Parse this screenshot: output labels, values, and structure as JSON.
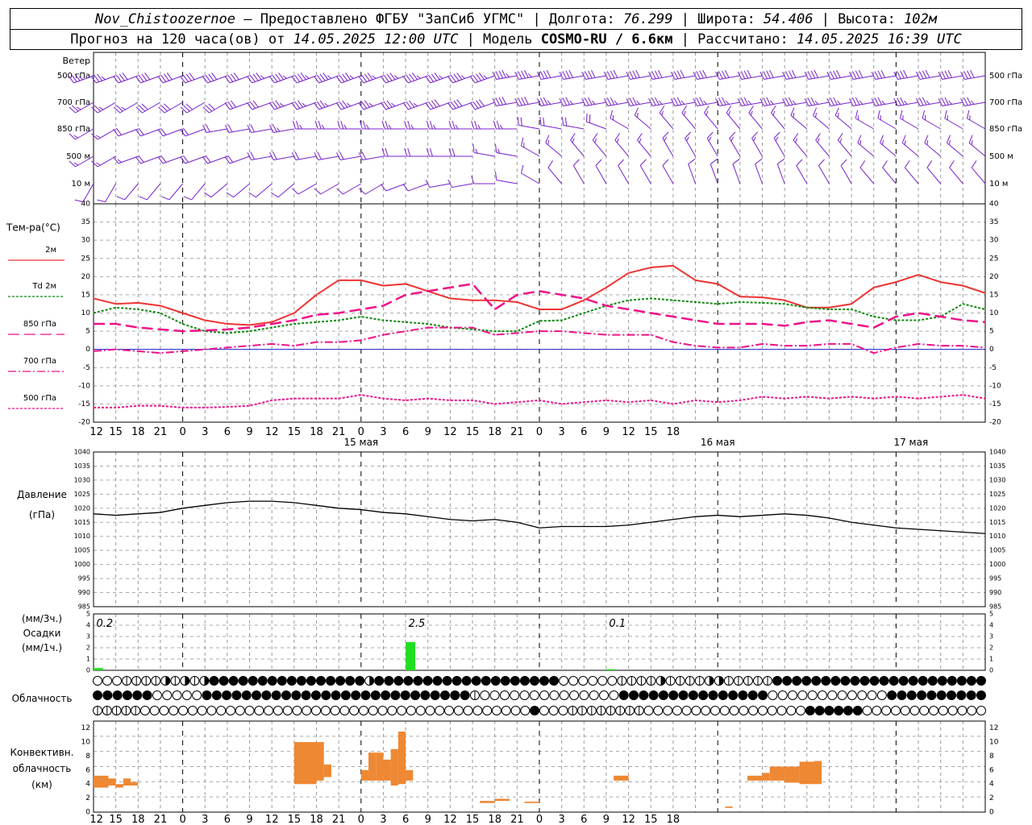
{
  "header": {
    "station": "Nov_Chistoozernoe",
    "provider": " – Предоставлено ФГБУ \"ЗапСиб УГМС\" | Долгота: ",
    "lon": "76.299",
    "lat_label": " | Широта: ",
    "lat": "54.406",
    "alt_label": " | Высота: ",
    "alt": "102м",
    "forecast_label": "Прогноз на 120 часа(ов) от ",
    "forecast_time": "14.05.2025 12:00 UTC",
    "model_label": " | Модель ",
    "model": "COSMO-RU / 6.6км",
    "calc_label": " | Рассчитано: ",
    "calc_time": "14.05.2025 16:39 UTC"
  },
  "labels": {
    "wind": "Ветер",
    "wind_levels": [
      "500 гПа",
      "700 гПа",
      "850 гПа",
      "500 м",
      "10  м"
    ],
    "temp_title": "Тем-ра(°C)",
    "temp_legend": [
      "2м",
      "Td  2м",
      "850 гПа",
      "700 гПа",
      "500 гПа"
    ],
    "pressure": [
      "Давление",
      "(гПа)"
    ],
    "precip": [
      "(мм/3ч.)",
      "Осадки",
      "(мм/1ч.)"
    ],
    "cloud": "Облачность",
    "conv": [
      "Конвективн.",
      "облачность",
      "(км)"
    ]
  },
  "colors": {
    "t2m": "#ee3333",
    "td2m": "#118811",
    "t850": "#ee1188",
    "t700": "#ee1188",
    "t500": "#ee1188",
    "zero_line": "#2222cc",
    "wind": "#7722cc",
    "pressure": "#000000",
    "precip": "#22dd22",
    "conv": "#ee8833"
  },
  "chart_data": [
    {
      "type": "line",
      "title": "Тем-ра(°C)",
      "x_ticks": [
        "12",
        "15",
        "18",
        "21",
        "0",
        "3",
        "6",
        "9",
        "12",
        "15",
        "18",
        "21",
        "0",
        "3",
        "6",
        "9",
        "12",
        "15",
        "18",
        "21",
        "0",
        "3",
        "6",
        "9",
        "12",
        "15",
        "18"
      ],
      "date_labels": [
        "15 мая",
        "16 мая",
        "17 мая"
      ],
      "ylim": [
        -20,
        40
      ],
      "hours": [
        0,
        3,
        6,
        9,
        12,
        15,
        18,
        21,
        24,
        27,
        30,
        33,
        36,
        39,
        42,
        45,
        48,
        51,
        54,
        57,
        60,
        63,
        66,
        69,
        72,
        75,
        78,
        81,
        84,
        87,
        90,
        93,
        96,
        99,
        102,
        105,
        108,
        111,
        114,
        117,
        120
      ],
      "series": [
        {
          "name": "2м",
          "values": [
            14,
            12.5,
            12.8,
            12,
            10,
            8,
            7,
            6.7,
            7.5,
            10,
            15,
            19,
            19,
            17.5,
            18,
            16,
            14,
            13.5,
            13.5,
            13,
            11,
            11,
            13.5,
            17,
            21,
            22.5,
            23,
            19,
            18,
            14.5,
            14.3,
            13.5,
            11.5,
            11.5,
            12.5,
            17,
            18.5,
            20.5,
            18.5,
            17.5,
            15.5
          ]
        },
        {
          "name": "Td  2м",
          "values": [
            10,
            11.5,
            11,
            10,
            7,
            5,
            4.5,
            5,
            6,
            7,
            7.5,
            8,
            9,
            8,
            7.5,
            7,
            6,
            5.5,
            5,
            5,
            7.8,
            8,
            10,
            12,
            13.5,
            14,
            13.5,
            13,
            12.5,
            13,
            12.8,
            12.5,
            11.5,
            11,
            11,
            9,
            8,
            8,
            9,
            12.5,
            11
          ]
        },
        {
          "name": "850 гПа",
          "values": [
            7,
            7,
            6,
            5.5,
            5,
            5.2,
            5.5,
            6,
            7,
            8,
            9.5,
            10,
            11,
            12,
            15,
            16,
            17,
            18,
            11,
            15,
            16,
            15,
            14,
            12,
            11,
            10,
            9,
            8,
            7,
            7,
            7,
            6.5,
            7.5,
            8,
            7,
            6,
            9,
            10,
            9,
            8,
            7.5
          ]
        },
        {
          "name": "700 гПа",
          "values": [
            -0.5,
            0,
            -0.5,
            -1,
            -0.5,
            0,
            0.5,
            1,
            1.5,
            1,
            2,
            2,
            2.5,
            4,
            5,
            6,
            6,
            6,
            4,
            4.5,
            5,
            5,
            4.5,
            4,
            4,
            4,
            2,
            1,
            0.5,
            0.5,
            1.5,
            1,
            1,
            1.5,
            1.5,
            -1,
            0.5,
            1.5,
            1,
            1,
            0.5
          ]
        },
        {
          "name": "500 гПа",
          "values": [
            -16,
            -16,
            -15.5,
            -15.5,
            -16,
            -16,
            -15.8,
            -15.5,
            -14,
            -13.5,
            -13.5,
            -13.5,
            -12.5,
            -13.5,
            -14,
            -13.5,
            -14,
            -14,
            -15,
            -14.5,
            -14,
            -15,
            -14.5,
            -14,
            -14.5,
            -14,
            -15,
            -14,
            -14.5,
            -14,
            -13,
            -13.5,
            -13,
            -13.5,
            -13,
            -13.5,
            -13,
            -13.5,
            -13,
            -12.5,
            -13.5
          ]
        }
      ]
    },
    {
      "type": "line",
      "title": "Давление (гПа)",
      "ylim": [
        985,
        1040
      ],
      "yticks": [
        985,
        990,
        995,
        1000,
        1005,
        1010,
        1015,
        1020,
        1025,
        1030,
        1035,
        1040
      ],
      "hours": [
        0,
        3,
        6,
        9,
        12,
        15,
        18,
        21,
        24,
        27,
        30,
        33,
        36,
        39,
        42,
        45,
        48,
        51,
        54,
        57,
        60,
        63,
        66,
        69,
        72,
        75,
        78,
        81,
        84,
        87,
        90,
        93,
        96,
        99,
        102,
        105,
        108,
        111,
        114,
        117,
        120
      ],
      "values": [
        1018,
        1017.5,
        1018,
        1018.5,
        1020,
        1021,
        1022,
        1022.5,
        1022.5,
        1022,
        1021,
        1020,
        1019.5,
        1018.5,
        1018,
        1017,
        1016,
        1015.5,
        1016,
        1015,
        1013,
        1013.5,
        1013.5,
        1013.5,
        1014,
        1015,
        1016,
        1017,
        1017.5,
        1017,
        1017.5,
        1018,
        1017.5,
        1016.5,
        1015,
        1014,
        1013,
        1012.5,
        1012,
        1011.5,
        1011
      ]
    },
    {
      "type": "bar",
      "title": "Осадки",
      "ylim": [
        0,
        5
      ],
      "annotations": [
        {
          "hour": 1.5,
          "text": "0.2"
        },
        {
          "hour": 43.5,
          "text": "2.5"
        },
        {
          "hour": 70.5,
          "text": "0.1"
        }
      ],
      "bars": [
        {
          "hour": 0,
          "value": 0.2
        },
        {
          "hour": 42,
          "value": 2.5
        },
        {
          "hour": 69,
          "value": 0.1
        }
      ]
    },
    {
      "type": "bar",
      "title": "Конвективн. облачность (км)",
      "ylim": [
        0,
        13
      ],
      "segments": [
        [
          0,
          2,
          3.5,
          5.2
        ],
        [
          2,
          3,
          3.8,
          4.8
        ],
        [
          3,
          4,
          3.5,
          4
        ],
        [
          4,
          5,
          3.8,
          4.8
        ],
        [
          5,
          6,
          3.8,
          4.3
        ],
        [
          27,
          30,
          4,
          10
        ],
        [
          30,
          31,
          4.5,
          10
        ],
        [
          31,
          32,
          5,
          6.8
        ],
        [
          36,
          37,
          4.5,
          6
        ],
        [
          37,
          38,
          4.5,
          8.5
        ],
        [
          38,
          39,
          4.5,
          8.5
        ],
        [
          39,
          40,
          4.5,
          7.5
        ],
        [
          40,
          41,
          3.8,
          9
        ],
        [
          41,
          42,
          4,
          11.5
        ],
        [
          42,
          43,
          4.5,
          6
        ],
        [
          52,
          54,
          1.3,
          1.6
        ],
        [
          54,
          56,
          1.6,
          1.9
        ],
        [
          58,
          60,
          1.3,
          1.5
        ],
        [
          70,
          72,
          4.5,
          5.2
        ],
        [
          85,
          86,
          0.6,
          0.8
        ],
        [
          88,
          90,
          4.5,
          5.2
        ],
        [
          90,
          91,
          4.5,
          5.6
        ],
        [
          91,
          93,
          4.5,
          6.5
        ],
        [
          93,
          95,
          4.2,
          6.5
        ],
        [
          95,
          97,
          4,
          7.2
        ],
        [
          97,
          98,
          4,
          7.3
        ]
      ]
    }
  ],
  "cloud_rows": [
    "ooo||||r|r|rhhhhhhhhhhhhhhhhrhhhhhhhhhhhhhhhhhhhoooooo||||r||||rr|||||hhhhhhhhhhhhhhhhhhhhhh",
    "hhhhhhooooohhhhhhhhhhhhhhhhhhhhhhhhhhh|oooooooooooooohhhhhhhhhhhhhhhoooooooooooohhhhhhhhhh",
    "|||||ooooooooooooooooooooooooooooooooooooooooohooo||||||||ooooooooooooooooohhhhhhooooooooooooo"
  ],
  "wind_rows": [
    {
      "dir": [
        250,
        250,
        250,
        250,
        250,
        250,
        250,
        250,
        250,
        250,
        250,
        250,
        250,
        250,
        250,
        250,
        250,
        250,
        250,
        260,
        260,
        260,
        260,
        260,
        260,
        260,
        260,
        260,
        260,
        260,
        260,
        260,
        260,
        260,
        260,
        260,
        260,
        260,
        260,
        260,
        260
      ],
      "spd": [
        35,
        35,
        40,
        40,
        40,
        40,
        40,
        40,
        45,
        45,
        45,
        45,
        45,
        45,
        45,
        45,
        45,
        45,
        45,
        45,
        45,
        40,
        40,
        40,
        40,
        40,
        40,
        40,
        40,
        40,
        40,
        40,
        40,
        40,
        40,
        40,
        40,
        40,
        40,
        40,
        40
      ]
    },
    {
      "dir": [
        240,
        240,
        240,
        240,
        240,
        240,
        240,
        250,
        250,
        250,
        250,
        250,
        250,
        250,
        250,
        250,
        250,
        250,
        250,
        260,
        260,
        260,
        260,
        260,
        260,
        260,
        260,
        260,
        260,
        260,
        260,
        260,
        260,
        260,
        260,
        260,
        260,
        260,
        260,
        260,
        260
      ],
      "spd": [
        25,
        25,
        25,
        30,
        30,
        30,
        30,
        30,
        30,
        35,
        35,
        35,
        35,
        35,
        35,
        35,
        40,
        40,
        40,
        40,
        40,
        35,
        35,
        35,
        35,
        35,
        35,
        35,
        35,
        35,
        35,
        35,
        35,
        35,
        35,
        35,
        35,
        35,
        35,
        35,
        35
      ]
    },
    {
      "dir": [
        240,
        240,
        250,
        250,
        250,
        250,
        260,
        260,
        260,
        260,
        270,
        270,
        270,
        270,
        270,
        270,
        270,
        270,
        270,
        270,
        280,
        280,
        280,
        290,
        300,
        310,
        320,
        320,
        320,
        320,
        320,
        320,
        310,
        310,
        310,
        300,
        300,
        300,
        300,
        300,
        300
      ],
      "spd": [
        15,
        15,
        20,
        20,
        20,
        20,
        20,
        20,
        20,
        25,
        25,
        25,
        25,
        25,
        25,
        25,
        25,
        25,
        25,
        25,
        20,
        20,
        20,
        20,
        15,
        15,
        15,
        15,
        15,
        15,
        15,
        15,
        15,
        15,
        15,
        15,
        15,
        15,
        15,
        15,
        15
      ]
    },
    {
      "dir": [
        240,
        240,
        250,
        250,
        250,
        250,
        250,
        250,
        260,
        260,
        260,
        260,
        260,
        260,
        270,
        270,
        270,
        270,
        280,
        280,
        300,
        310,
        320,
        320,
        320,
        320,
        330,
        330,
        330,
        330,
        330,
        330,
        320,
        320,
        320,
        310,
        310,
        310,
        310,
        310,
        310
      ],
      "spd": [
        15,
        15,
        15,
        20,
        20,
        20,
        20,
        20,
        20,
        20,
        20,
        20,
        20,
        20,
        20,
        20,
        20,
        20,
        15,
        15,
        15,
        15,
        15,
        15,
        15,
        15,
        15,
        15,
        15,
        15,
        15,
        15,
        15,
        15,
        15,
        15,
        15,
        15,
        15,
        15,
        15
      ]
    },
    {
      "dir": [
        210,
        210,
        220,
        220,
        220,
        220,
        230,
        230,
        230,
        230,
        240,
        240,
        240,
        240,
        250,
        250,
        260,
        260,
        270,
        280,
        300,
        320,
        330,
        330,
        330,
        330,
        330,
        340,
        340,
        340,
        340,
        340,
        330,
        330,
        330,
        320,
        320,
        320,
        320,
        320,
        320
      ],
      "spd": [
        10,
        10,
        10,
        10,
        10,
        10,
        10,
        10,
        10,
        10,
        10,
        10,
        10,
        10,
        10,
        10,
        10,
        10,
        10,
        10,
        10,
        10,
        10,
        10,
        10,
        10,
        10,
        10,
        10,
        10,
        10,
        10,
        10,
        10,
        10,
        10,
        10,
        10,
        10,
        10,
        10
      ]
    }
  ]
}
